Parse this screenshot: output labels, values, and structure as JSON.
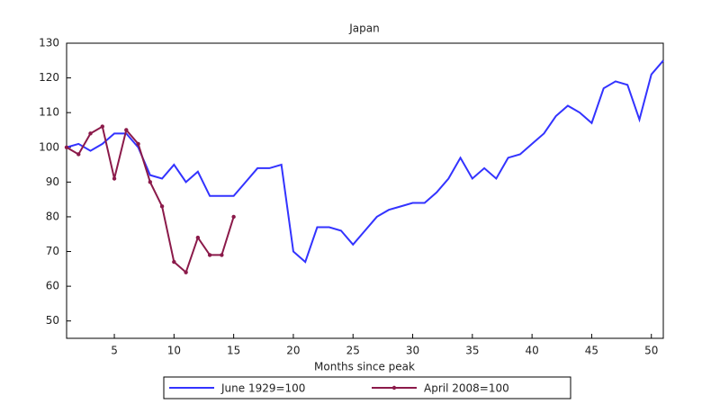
{
  "chart_data": {
    "type": "line",
    "title": "Japan",
    "x_label": "Months since peak",
    "x": [
      1,
      2,
      3,
      4,
      5,
      6,
      7,
      8,
      9,
      10,
      11,
      12,
      13,
      14,
      15,
      16,
      17,
      18,
      19,
      20,
      21,
      22,
      23,
      24,
      25,
      26,
      27,
      28,
      29,
      30,
      31,
      32,
      33,
      34,
      35,
      36,
      37,
      38,
      39,
      40,
      41,
      42,
      43,
      44,
      45,
      46,
      47,
      48,
      49,
      50,
      51
    ],
    "series": [
      {
        "name": "June 1929=100",
        "color": "#3333ff",
        "marker": false,
        "values": [
          100,
          101,
          99,
          101,
          104,
          104,
          100,
          92,
          91,
          95,
          90,
          93,
          86,
          86,
          86,
          90,
          94,
          94,
          95,
          70,
          67,
          77,
          77,
          76,
          72,
          76,
          80,
          82,
          83,
          84,
          84,
          87,
          91,
          97,
          91,
          94,
          91,
          97,
          98,
          101,
          104,
          109,
          112,
          110,
          107,
          117,
          119,
          118,
          108,
          121,
          125
        ]
      },
      {
        "name": "April 2008=100",
        "color": "#8b1a4a",
        "marker": true,
        "values": [
          100,
          98,
          104,
          106,
          91,
          105,
          101,
          90,
          83,
          67,
          64,
          74,
          69,
          69,
          80,
          null,
          null,
          null,
          null,
          null,
          null,
          null,
          null,
          null,
          null,
          null,
          null,
          null,
          null,
          null,
          null,
          null,
          null,
          null,
          null,
          null,
          null,
          null,
          null,
          null,
          null,
          null,
          null,
          null,
          null,
          null,
          null,
          null,
          null,
          null,
          null
        ]
      }
    ],
    "xlim": [
      1,
      51
    ],
    "ylim": [
      45,
      130
    ],
    "xticks": [
      5,
      10,
      15,
      20,
      25,
      30,
      35,
      40,
      45,
      50
    ],
    "yticks": [
      50,
      60,
      70,
      80,
      90,
      100,
      110,
      120,
      130
    ],
    "legend": "bottom"
  }
}
